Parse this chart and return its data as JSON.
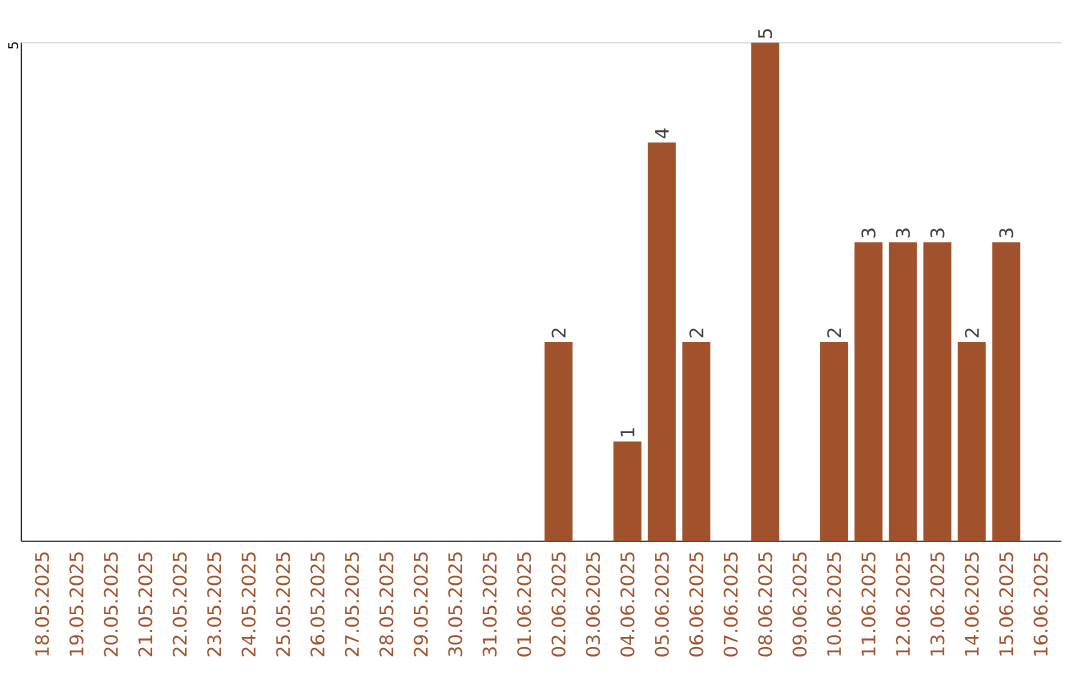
{
  "chart_data": {
    "type": "bar",
    "categories": [
      "18.05.2025",
      "19.05.2025",
      "20.05.2025",
      "21.05.2025",
      "22.05.2025",
      "23.05.2025",
      "24.05.2025",
      "25.05.2025",
      "26.05.2025",
      "27.05.2025",
      "28.05.2025",
      "29.05.2025",
      "30.05.2025",
      "31.05.2025",
      "01.06.2025",
      "02.06.2025",
      "03.06.2025",
      "04.06.2025",
      "05.06.2025",
      "06.06.2025",
      "07.06.2025",
      "08.06.2025",
      "09.06.2025",
      "10.06.2025",
      "11.06.2025",
      "12.06.2025",
      "13.06.2025",
      "14.06.2025",
      "15.06.2025",
      "16.06.2025"
    ],
    "values": [
      null,
      null,
      null,
      null,
      null,
      null,
      null,
      null,
      null,
      null,
      null,
      null,
      null,
      null,
      null,
      2,
      null,
      1,
      4,
      2,
      null,
      5,
      null,
      2,
      3,
      3,
      3,
      2,
      3,
      null
    ],
    "data_labels": true,
    "color": "#a0522d",
    "ylim": [
      0,
      5
    ],
    "ref_lines": [
      {
        "axis": "y",
        "value": 5,
        "label": "5",
        "color": "#cccccc"
      }
    ]
  }
}
